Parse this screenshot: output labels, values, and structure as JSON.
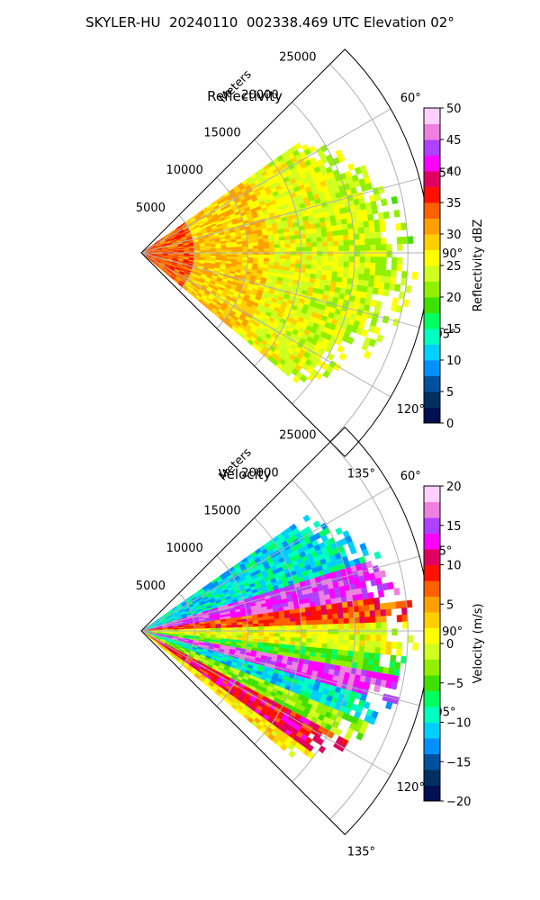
{
  "figure": {
    "suptitle": "SKYLER-HU  20240110  002338.469 UTC Elevation 02°"
  },
  "chart_data": [
    {
      "type": "heatmap",
      "projection": "polar-sector",
      "title": "Reflectivity",
      "radial_axis_label": "Meters",
      "radial_ticks": [
        5000,
        10000,
        15000,
        20000,
        25000
      ],
      "radial_tick_labels": [
        "5000",
        "10000",
        "15000",
        "20000",
        "25000"
      ],
      "radial_range": [
        0,
        27000
      ],
      "azimuth_range_deg": [
        45,
        135
      ],
      "azimuth_ticks_deg": [
        60,
        75,
        90,
        105,
        120,
        135
      ],
      "azimuth_tick_labels": [
        "60°",
        "75°",
        "90°",
        "105°",
        "120°",
        "135°"
      ],
      "grid": true,
      "field": "Reflectivity",
      "data_extent": {
        "azimuth_deg": [
          55,
          130
        ],
        "range_m": [
          0,
          26000
        ]
      },
      "colorbar": {
        "label": "Reflectivity dBZ",
        "vmin": 0,
        "vmax": 50,
        "ticks": [
          0,
          5,
          10,
          15,
          20,
          25,
          30,
          35,
          40,
          45,
          50
        ],
        "tick_labels": [
          "0",
          "5",
          "10",
          "15",
          "20",
          "25",
          "30",
          "35",
          "40",
          "45",
          "50"
        ],
        "colors": [
          "#001050",
          "#003060",
          "#0050a0",
          "#0090ff",
          "#00d0ff",
          "#00ffc0",
          "#00ff60",
          "#40e000",
          "#90f000",
          "#d0ff20",
          "#ffff00",
          "#ffd000",
          "#ffa000",
          "#ff6000",
          "#ff1000",
          "#e00060",
          "#ff00ff",
          "#b040ff",
          "#f080e0",
          "#ffd0ff"
        ]
      },
      "description_values": {
        "near_radar_dbz": 35,
        "mid_range_dbz": 28,
        "far_edge_dbz": 22
      }
    },
    {
      "type": "heatmap",
      "projection": "polar-sector",
      "title": "Velocity",
      "radial_axis_label": "Meters",
      "radial_ticks": [
        5000,
        10000,
        15000,
        20000,
        25000
      ],
      "radial_tick_labels": [
        "5000",
        "10000",
        "15000",
        "20000",
        "25000"
      ],
      "radial_range": [
        0,
        27000
      ],
      "azimuth_range_deg": [
        45,
        135
      ],
      "azimuth_ticks_deg": [
        60,
        75,
        90,
        105,
        120,
        135
      ],
      "azimuth_tick_labels": [
        "60°",
        "75°",
        "90°",
        "105°",
        "120°",
        "135°"
      ],
      "grid": true,
      "field": "Velocity",
      "data_extent": {
        "azimuth_deg": [
          55,
          130
        ],
        "range_m": [
          0,
          26000
        ]
      },
      "colorbar": {
        "label": "Velocity (m/s)",
        "vmin": -20,
        "vmax": 20,
        "ticks": [
          -20,
          -15,
          -10,
          -5,
          0,
          5,
          10,
          15,
          20
        ],
        "tick_labels": [
          "−20",
          "−15",
          "−10",
          "−5",
          "0",
          "5",
          "10",
          "15",
          "20"
        ],
        "colors": [
          "#001050",
          "#003060",
          "#0050a0",
          "#0090ff",
          "#00d0ff",
          "#00ffc0",
          "#00ff60",
          "#40e000",
          "#90f000",
          "#d0ff20",
          "#ffff00",
          "#ffd000",
          "#ffa000",
          "#ff6000",
          "#ff1000",
          "#e00060",
          "#ff00ff",
          "#b040ff",
          "#f080e0",
          "#ffd0ff"
        ]
      },
      "velocity_bands": [
        {
          "azimuth_deg": [
            55,
            72
          ],
          "velocity_ms": -10
        },
        {
          "azimuth_deg": [
            72,
            82
          ],
          "velocity_ms": 15
        },
        {
          "azimuth_deg": [
            82,
            88
          ],
          "velocity_ms": 8
        },
        {
          "azimuth_deg": [
            88,
            95
          ],
          "velocity_ms": 0
        },
        {
          "azimuth_deg": [
            95,
            100
          ],
          "velocity_ms": -5
        },
        {
          "azimuth_deg": [
            100,
            105
          ],
          "velocity_ms": 15
        },
        {
          "azimuth_deg": [
            105,
            112
          ],
          "velocity_ms": -10
        },
        {
          "azimuth_deg": [
            112,
            118
          ],
          "velocity_ms": -3
        },
        {
          "azimuth_deg": [
            118,
            125
          ],
          "velocity_ms": 10
        },
        {
          "azimuth_deg": [
            125,
            130
          ],
          "velocity_ms": 2
        }
      ]
    }
  ]
}
